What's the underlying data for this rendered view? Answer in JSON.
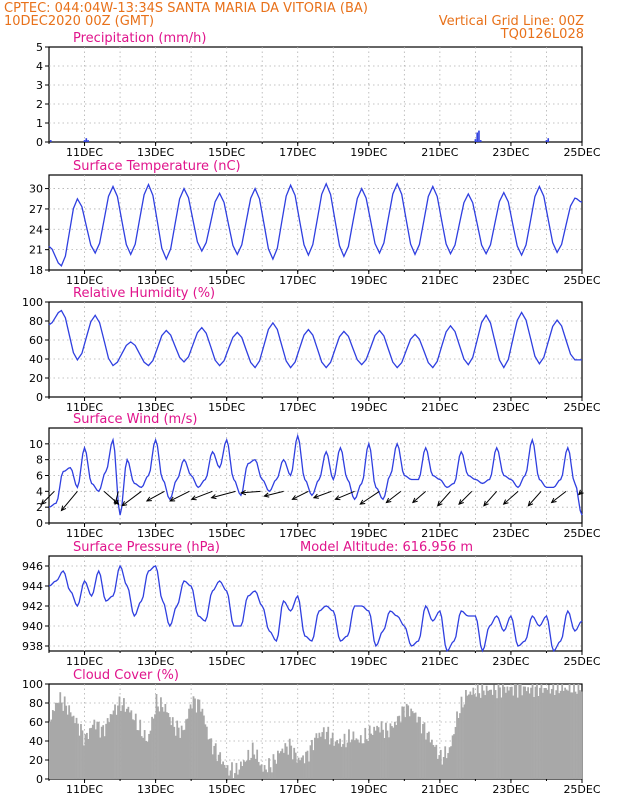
{
  "header": {
    "left_line1": "CPTEC:   044:04W-13:34S   SANTA MARIA DA VITORIA (BA)",
    "left_line2": "10DEC2020 00Z (GMT)",
    "right_line2": "Vertical Grid Line: 00Z",
    "right_line3": "TQ0126L028"
  },
  "colors": {
    "header": "#e8711a",
    "panel_title": "#e0148c",
    "series": "#2f3fe0",
    "cloud": "#a8a8a8",
    "wind_arrow": "#000000",
    "grid": "#b0b0b0"
  },
  "x_axis": {
    "start_day": 10,
    "end_day": 25,
    "tick_days": [
      11,
      13,
      15,
      17,
      19,
      21,
      23,
      25
    ],
    "tick_labels": [
      "11DEC",
      "13DEC",
      "15DEC",
      "17DEC",
      "19DEC",
      "21DEC",
      "23DEC",
      "25DEC"
    ]
  },
  "chart_data": [
    {
      "id": "precip",
      "type": "bar",
      "title": "Precipitation (mm/h)",
      "ylim": [
        0,
        5
      ],
      "yticks": [
        0,
        1,
        2,
        3,
        4,
        5
      ],
      "grid": true,
      "x": [
        10.05,
        11.0,
        11.05,
        11.1,
        22.0,
        22.05,
        22.1,
        22.15,
        24.0,
        24.05
      ],
      "values": [
        0.1,
        0.1,
        0.2,
        0.1,
        0.15,
        0.5,
        0.6,
        0.1,
        0.1,
        0.2
      ]
    },
    {
      "id": "temp",
      "type": "line",
      "title": "Surface Temperature (nC)",
      "ylim": [
        18,
        32
      ],
      "yticks": [
        18,
        21,
        24,
        27,
        30
      ],
      "grid": true,
      "min_x": [
        10.0,
        10.35,
        11.3,
        12.3,
        13.3,
        14.3,
        15.3,
        16.3,
        17.3,
        18.3,
        19.3,
        20.3,
        21.3,
        22.3,
        23.3,
        24.3
      ],
      "min_v": [
        21.5,
        18.6,
        20.5,
        20.3,
        19.6,
        20.8,
        20.3,
        19.6,
        20.2,
        20.0,
        20.5,
        20.3,
        20.4,
        20.4,
        20.2,
        20.6
      ],
      "max_x": [
        10.8,
        11.8,
        12.8,
        13.8,
        14.8,
        15.8,
        16.8,
        17.8,
        18.8,
        19.8,
        20.8,
        21.8,
        22.8,
        23.8,
        24.8
      ],
      "max_v": [
        28.5,
        30.3,
        30.6,
        30.0,
        29.3,
        30.0,
        30.5,
        30.7,
        30.0,
        30.7,
        30.3,
        29.2,
        29.4,
        30.3,
        28.6
      ],
      "end_v": 28.0
    },
    {
      "id": "rh",
      "type": "line",
      "title": "Relative Humidity (%)",
      "ylim": [
        0,
        100
      ],
      "yticks": [
        0,
        20,
        40,
        60,
        80,
        100
      ],
      "grid": true,
      "max_x": [
        10.35,
        11.3,
        12.3,
        13.3,
        14.3,
        15.3,
        16.3,
        17.3,
        18.3,
        19.3,
        20.3,
        21.3,
        22.3,
        23.3,
        24.3
      ],
      "max_v": [
        91,
        86,
        58,
        70,
        73,
        68,
        78,
        71,
        69,
        70,
        66,
        75,
        86,
        89,
        81
      ],
      "min_x": [
        10.0,
        10.8,
        11.8,
        12.8,
        13.8,
        14.8,
        15.8,
        16.8,
        17.8,
        18.8,
        19.8,
        20.8,
        21.8,
        22.8,
        23.8,
        24.8
      ],
      "min_v": [
        76,
        39,
        33,
        33,
        37,
        33,
        31,
        31,
        31,
        34,
        31,
        31,
        34,
        31,
        35,
        39
      ],
      "end_v": 39
    },
    {
      "id": "wind",
      "type": "line",
      "title": "Surface Wind (m/s)",
      "ylim": [
        0,
        12
      ],
      "yticks": [
        0,
        2,
        4,
        6,
        8,
        10
      ],
      "grid": true,
      "x": [
        10.0,
        10.2,
        10.4,
        10.6,
        10.8,
        11.0,
        11.2,
        11.4,
        11.6,
        11.8,
        12.0,
        12.2,
        12.4,
        12.6,
        12.8,
        13.0,
        13.2,
        13.4,
        13.6,
        13.8,
        14.0,
        14.2,
        14.4,
        14.6,
        14.8,
        15.0,
        15.2,
        15.4,
        15.6,
        15.8,
        16.0,
        16.2,
        16.4,
        16.6,
        16.8,
        17.0,
        17.2,
        17.4,
        17.6,
        17.8,
        18.0,
        18.2,
        18.4,
        18.6,
        18.8,
        19.0,
        19.2,
        19.4,
        19.6,
        19.8,
        20.0,
        20.2,
        20.4,
        20.6,
        20.8,
        21.0,
        21.2,
        21.4,
        21.6,
        21.8,
        22.0,
        22.2,
        22.4,
        22.6,
        22.8,
        23.0,
        23.2,
        23.4,
        23.6,
        23.8,
        24.0,
        24.2,
        24.4,
        24.6,
        24.8,
        25.0
      ],
      "values": [
        2.0,
        2.5,
        6.5,
        7.0,
        4.5,
        9.5,
        5.0,
        4.0,
        6.5,
        10.5,
        1.0,
        8.0,
        5.0,
        4.5,
        6.0,
        10.5,
        5.5,
        3.0,
        5.5,
        8.0,
        6.0,
        4.5,
        5.5,
        9.0,
        7.0,
        10.5,
        5.5,
        3.5,
        7.5,
        8.0,
        5.5,
        4.0,
        5.5,
        8.0,
        6.0,
        11.0,
        5.5,
        3.5,
        5.5,
        9.0,
        5.5,
        9.5,
        5.5,
        3.0,
        5.0,
        10.0,
        4.5,
        3.0,
        6.0,
        10.0,
        6.0,
        5.5,
        5.5,
        9.5,
        6.0,
        5.5,
        4.5,
        5.0,
        9.0,
        6.0,
        5.5,
        5.0,
        5.5,
        9.5,
        6.0,
        5.5,
        4.5,
        6.0,
        10.5,
        5.5,
        4.5,
        4.5,
        5.5,
        9.5,
        5.0,
        1.0
      ],
      "arrows_x": [
        10.15,
        10.8,
        11.55,
        11.95,
        12.6,
        13.25,
        13.95,
        14.6,
        15.25,
        15.95,
        16.6,
        17.3,
        17.95,
        18.6,
        19.3,
        19.9,
        20.6,
        21.3,
        21.9,
        22.6,
        23.2,
        23.85,
        24.55,
        25.0
      ],
      "arrows_u": [
        4.0,
        5.0,
        -4.5,
        1.0,
        6.0,
        5.5,
        6.0,
        6.5,
        7.5,
        6.0,
        6.0,
        5.0,
        5.5,
        6.0,
        6.0,
        4.5,
        4.0,
        4.0,
        4.0,
        4.0,
        4.5,
        4.0,
        4.5,
        1.0
      ],
      "arrows_v": [
        4.0,
        6.0,
        4.0,
        4.0,
        4.5,
        3.0,
        3.0,
        2.5,
        2.0,
        0.5,
        1.5,
        2.5,
        2.0,
        2.5,
        4.0,
        3.5,
        3.5,
        4.5,
        4.0,
        4.5,
        4.0,
        4.5,
        3.5,
        1.0
      ]
    },
    {
      "id": "press",
      "type": "line",
      "title": "Surface Pressure (hPa)",
      "annotation": "Model Altitude: 616.956 m",
      "ylim": [
        937.5,
        947
      ],
      "yticks": [
        938,
        940,
        942,
        944,
        946
      ],
      "grid": true,
      "x": [
        10.0,
        10.2,
        10.4,
        10.6,
        10.8,
        11.0,
        11.2,
        11.4,
        11.6,
        11.8,
        12.0,
        12.2,
        12.4,
        12.6,
        12.8,
        13.0,
        13.2,
        13.4,
        13.6,
        13.8,
        14.0,
        14.2,
        14.4,
        14.6,
        14.8,
        15.0,
        15.2,
        15.4,
        15.6,
        15.8,
        16.0,
        16.2,
        16.4,
        16.6,
        16.8,
        17.0,
        17.2,
        17.4,
        17.6,
        17.8,
        18.0,
        18.2,
        18.4,
        18.6,
        18.8,
        19.0,
        19.2,
        19.4,
        19.6,
        19.8,
        20.0,
        20.2,
        20.4,
        20.6,
        20.8,
        21.0,
        21.2,
        21.4,
        21.6,
        21.8,
        22.0,
        22.2,
        22.4,
        22.6,
        22.8,
        23.0,
        23.2,
        23.4,
        23.6,
        23.8,
        24.0,
        24.2,
        24.4,
        24.6,
        24.8,
        25.0
      ],
      "values": [
        944.0,
        944.5,
        945.5,
        943.5,
        942.0,
        944.5,
        943.0,
        945.5,
        942.5,
        943.0,
        946.0,
        944.0,
        941.0,
        942.5,
        945.5,
        946.0,
        942.5,
        940.0,
        942.0,
        944.5,
        944.0,
        941.0,
        940.5,
        943.5,
        944.5,
        943.5,
        940.0,
        940.0,
        943.0,
        943.5,
        942.0,
        939.5,
        938.5,
        942.5,
        941.5,
        943.0,
        939.0,
        938.5,
        941.5,
        942.0,
        941.5,
        938.5,
        939.0,
        942.0,
        942.0,
        941.5,
        938.0,
        939.5,
        941.5,
        941.0,
        940.0,
        938.0,
        938.5,
        942.0,
        940.5,
        941.5,
        937.5,
        938.5,
        941.5,
        941.0,
        941.0,
        937.5,
        940.0,
        941.0,
        939.5,
        941.0,
        938.0,
        938.5,
        941.0,
        940.0,
        941.0,
        937.5,
        938.5,
        941.5,
        939.5,
        940.5
      ]
    },
    {
      "id": "cloud",
      "type": "area",
      "title": "Cloud Cover (%)",
      "ylim": [
        0,
        100
      ],
      "yticks": [
        0,
        20,
        40,
        60,
        80,
        100
      ],
      "grid": true,
      "x": [
        10.0,
        10.25,
        10.5,
        10.75,
        11.0,
        11.25,
        11.5,
        11.75,
        12.0,
        12.25,
        12.5,
        12.75,
        13.0,
        13.25,
        13.5,
        13.75,
        14.0,
        14.25,
        14.5,
        14.75,
        15.0,
        15.25,
        15.5,
        15.75,
        16.0,
        16.25,
        16.5,
        16.75,
        17.0,
        17.25,
        17.5,
        17.75,
        18.0,
        18.25,
        18.5,
        18.75,
        19.0,
        19.25,
        19.5,
        19.75,
        20.0,
        20.25,
        20.5,
        20.75,
        21.0,
        21.25,
        21.5,
        21.75,
        22.0,
        22.25,
        22.5,
        22.75,
        23.0,
        23.25,
        23.5,
        23.75,
        24.0,
        24.25,
        24.5,
        24.75,
        25.0
      ],
      "values": [
        62,
        85,
        75,
        60,
        42,
        60,
        50,
        70,
        80,
        72,
        55,
        40,
        80,
        75,
        55,
        50,
        82,
        78,
        40,
        25,
        10,
        8,
        20,
        30,
        10,
        15,
        30,
        35,
        20,
        25,
        45,
        50,
        40,
        38,
        45,
        40,
        48,
        55,
        50,
        60,
        75,
        70,
        55,
        40,
        22,
        30,
        70,
        90,
        92,
        94,
        93,
        95,
        95,
        96,
        94,
        96,
        95,
        96,
        95,
        96,
        95
      ]
    }
  ]
}
